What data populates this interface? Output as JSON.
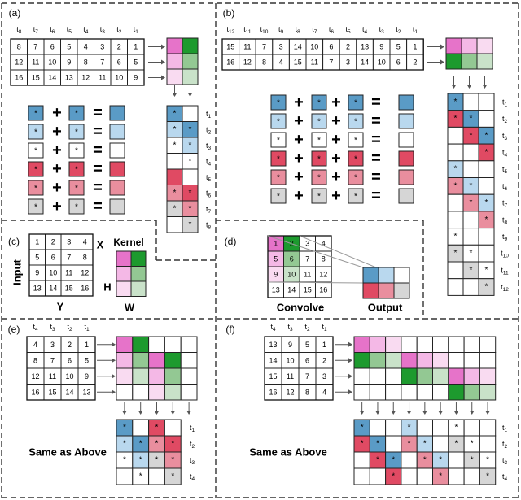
{
  "colors": {
    "pink": "#e673c9",
    "green": "#1d9a2e",
    "light_pink": "#f4b8e6",
    "light_green": "#93c893",
    "lighter_pink": "#f9dbf1",
    "lighter_green": "#c9e2c9",
    "blue": "#5a9bc6",
    "light_blue": "#b9d8ee",
    "red": "#e04a63",
    "light_red": "#e98e9e",
    "gray": "#d6d6d6",
    "white": "#ffffff"
  },
  "symbols": {
    "star": "*",
    "plus": "+",
    "equals": "=",
    "arrow": "→"
  },
  "panel_a": {
    "label": "(a)",
    "time_labels": [
      "t8",
      "t7",
      "t6",
      "t5",
      "t4",
      "t3",
      "t2",
      "t1"
    ],
    "grid": [
      [
        "8",
        "7",
        "6",
        "5",
        "4",
        "3",
        "2",
        "1"
      ],
      [
        "12",
        "11",
        "10",
        "9",
        "8",
        "7",
        "6",
        "5"
      ],
      [
        "16",
        "15",
        "14",
        "13",
        "12",
        "11",
        "10",
        "9"
      ]
    ],
    "out_labels": [
      "t1",
      "t2",
      "t3",
      "t4",
      "t5",
      "t6",
      "t7",
      "t8"
    ]
  },
  "panel_b": {
    "label": "(b)",
    "time_labels": [
      "t12",
      "t11",
      "t10",
      "t9",
      "t8",
      "t7",
      "t6",
      "t5",
      "t4",
      "t3",
      "t2",
      "t1"
    ],
    "grid": [
      [
        "15",
        "11",
        "7",
        "3",
        "14",
        "10",
        "6",
        "2",
        "13",
        "9",
        "5",
        "1"
      ],
      [
        "16",
        "12",
        "8",
        "4",
        "15",
        "11",
        "7",
        "3",
        "14",
        "10",
        "6",
        "2"
      ]
    ],
    "out_labels": [
      "t1",
      "t2",
      "t3",
      "t4",
      "t5",
      "t6",
      "t7",
      "t8",
      "t9",
      "t10",
      "t11",
      "t12"
    ]
  },
  "panel_c": {
    "label": "(c)",
    "input_label": "Input",
    "kernel_label": "Kernel",
    "x_label": "X",
    "y_label": "Y",
    "h_label": "H",
    "w_label": "W",
    "grid": [
      [
        "1",
        "2",
        "3",
        "4"
      ],
      [
        "5",
        "6",
        "7",
        "8"
      ],
      [
        "9",
        "10",
        "11",
        "12"
      ],
      [
        "13",
        "14",
        "15",
        "16"
      ]
    ]
  },
  "panel_d": {
    "label": "(d)",
    "convolve_label": "Convolve",
    "output_label": "Output",
    "grid": [
      [
        "1",
        "2",
        "3",
        "4"
      ],
      [
        "5",
        "6",
        "7",
        "8"
      ],
      [
        "9",
        "10",
        "11",
        "12"
      ],
      [
        "13",
        "14",
        "15",
        "16"
      ]
    ]
  },
  "panel_e": {
    "label": "(e)",
    "time_labels": [
      "t4",
      "t3",
      "t2",
      "t1"
    ],
    "grid": [
      [
        "4",
        "3",
        "2",
        "1"
      ],
      [
        "8",
        "7",
        "6",
        "5"
      ],
      [
        "12",
        "11",
        "10",
        "9"
      ],
      [
        "16",
        "15",
        "14",
        "13"
      ]
    ],
    "out_labels": [
      "t1",
      "t2",
      "t3",
      "t4"
    ],
    "same_label": "Same as Above"
  },
  "panel_f": {
    "label": "(f)",
    "time_labels": [
      "t4",
      "t3",
      "t2",
      "t1"
    ],
    "grid": [
      [
        "13",
        "9",
        "5",
        "1"
      ],
      [
        "14",
        "10",
        "6",
        "2"
      ],
      [
        "15",
        "11",
        "7",
        "3"
      ],
      [
        "16",
        "12",
        "8",
        "4"
      ]
    ],
    "out_labels": [
      "t1",
      "t2",
      "t3",
      "t4"
    ],
    "same_label": "Same as Above"
  }
}
